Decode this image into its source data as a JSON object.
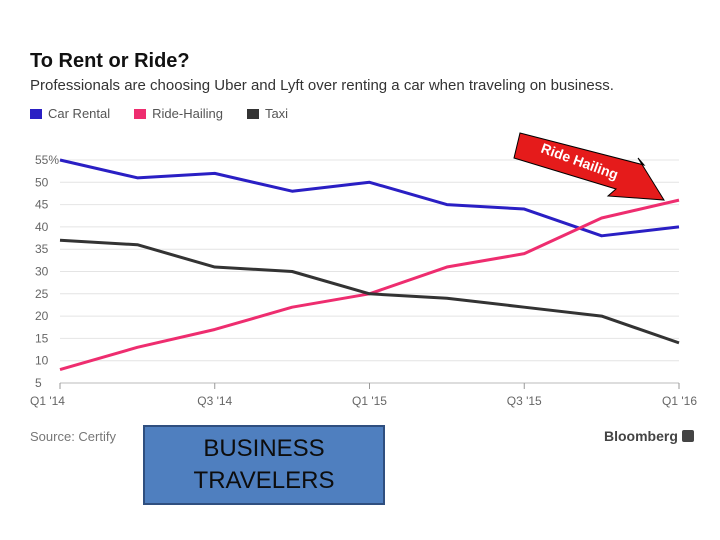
{
  "header": {
    "title": "To Rent or Ride?",
    "subtitle": "Professionals are choosing Uber and Lyft over renting a car when traveling on business."
  },
  "legend": [
    {
      "label": "Car Rental",
      "color": "#2a1fc4"
    },
    {
      "label": "Ride-Hailing",
      "color": "#ee2d6f"
    },
    {
      "label": "Taxi",
      "color": "#333333"
    }
  ],
  "callout": {
    "text": "Ride Hailing",
    "color": "#e51b1b"
  },
  "footer": {
    "source": "Source: Certify",
    "brand": "Bloomberg"
  },
  "box": {
    "line1": "BUSINESS",
    "line2": "TRAVELERS"
  },
  "chart_data": {
    "type": "line",
    "title": "To Rent or Ride?",
    "x": [
      "Q1 '14",
      "Q2 '14",
      "Q3 '14",
      "Q4 '14",
      "Q1 '15",
      "Q2 '15",
      "Q3 '15",
      "Q4 '15",
      "Q1 '16"
    ],
    "tick_labels_x": [
      "Q1 '14",
      "Q3 '14",
      "Q1 '15",
      "Q3 '15",
      "Q1 '16"
    ],
    "tick_labels_y": [
      "55%",
      "50",
      "45",
      "40",
      "35",
      "30",
      "25",
      "20",
      "15",
      "10",
      "5"
    ],
    "ylim": [
      5,
      55
    ],
    "series": [
      {
        "name": "Car Rental",
        "color": "#2a1fc4",
        "values": [
          55,
          51,
          52,
          48,
          50,
          45,
          44,
          38,
          40
        ]
      },
      {
        "name": "Ride-Hailing",
        "color": "#ee2d6f",
        "values": [
          8,
          13,
          17,
          22,
          25,
          31,
          34,
          42,
          46
        ]
      },
      {
        "name": "Taxi",
        "color": "#333333",
        "values": [
          37,
          36,
          31,
          30,
          25,
          24,
          22,
          20,
          14
        ]
      }
    ]
  }
}
